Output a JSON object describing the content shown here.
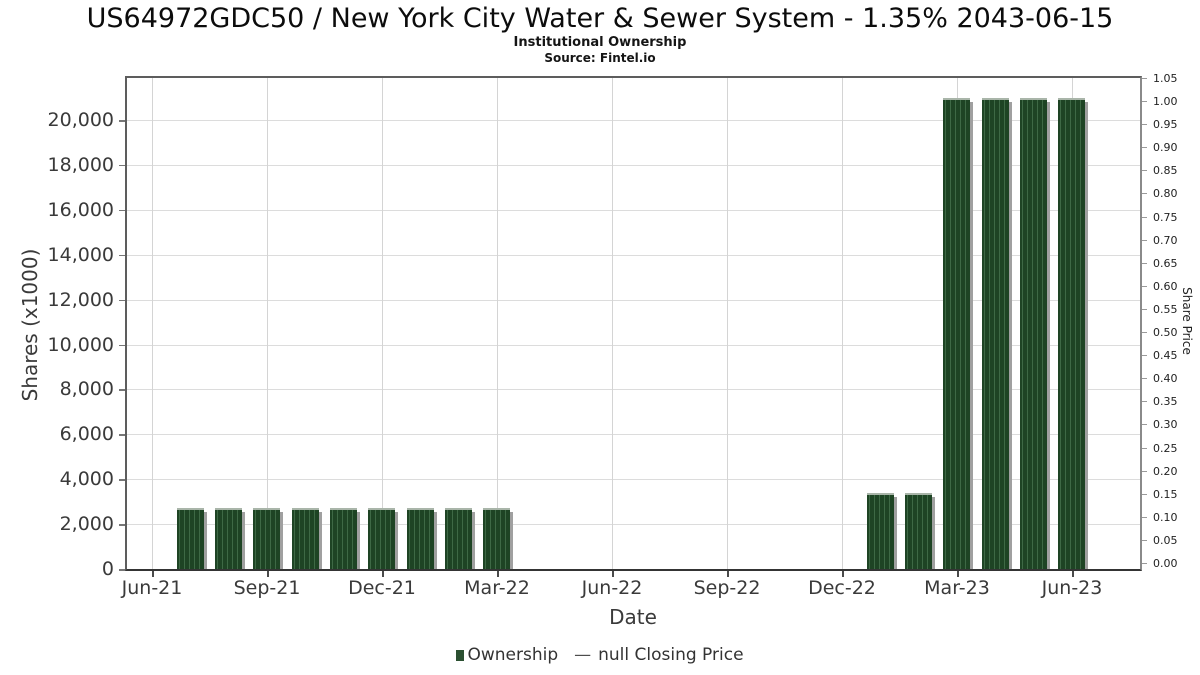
{
  "title": "US64972GDC50 / New York City Water & Sewer System - 1.35% 2043-06-15",
  "subtitle": "Institutional Ownership",
  "source": "Source: Fintel.io",
  "legend": {
    "ownership_label": "Ownership",
    "dash_glyph": "—",
    "price_label": "null Closing Price"
  },
  "colors": {
    "bar_dark": "#1e4424",
    "bar_light": "#3e6945",
    "bar_cap": "#a9b5a9",
    "bar_shadow": "#a0a0a0",
    "legend_marker": "#2b5031",
    "gridline": "#dcdcdc"
  },
  "chart_data": {
    "type": "bar",
    "title": "US64972GDC50 / New York City Water & Sewer System - 1.35% 2043-06-15",
    "subtitle": "Institutional Ownership",
    "source": "Source: Fintel.io",
    "xlabel": "Date",
    "ylabel_left": "Shares (x1000)",
    "ylabel_right": "Share Price",
    "grid": true,
    "legend_position": "bottom-center",
    "x_range_months": [
      "Jun-21",
      "Jun-23"
    ],
    "x_tick_labels": [
      "Jun-21",
      "Sep-21",
      "Dec-21",
      "Mar-22",
      "Jun-22",
      "Sep-22",
      "Dec-22",
      "Mar-23",
      "Jun-23"
    ],
    "ylim_left": [
      0,
      21900
    ],
    "y_left_ticks": [
      {
        "label": "0",
        "value": 0
      },
      {
        "label": "2,000",
        "value": 2000
      },
      {
        "label": "4,000",
        "value": 4000
      },
      {
        "label": "6,000",
        "value": 6000
      },
      {
        "label": "8,000",
        "value": 8000
      },
      {
        "label": "10,000",
        "value": 10000
      },
      {
        "label": "12,000",
        "value": 12000
      },
      {
        "label": "14,000",
        "value": 14000
      },
      {
        "label": "16,000",
        "value": 16000
      },
      {
        "label": "18,000",
        "value": 18000
      },
      {
        "label": "20,000",
        "value": 20000
      }
    ],
    "ylim_right": [
      0.0,
      1.05
    ],
    "y_right_tick_labels": [
      "0.00",
      "0.05",
      "0.10",
      "0.15",
      "0.20",
      "0.25",
      "0.30",
      "0.35",
      "0.40",
      "0.45",
      "0.50",
      "0.55",
      "0.60",
      "0.65",
      "0.70",
      "0.75",
      "0.80",
      "0.85",
      "0.90",
      "0.95",
      "1.00",
      "1.05"
    ],
    "series": [
      {
        "name": "Ownership",
        "unit": "shares (x1000)",
        "points": [
          {
            "date": "Jul-21",
            "month_index": 1,
            "shares_x1000": 2650
          },
          {
            "date": "Aug-21",
            "month_index": 2,
            "shares_x1000": 2650
          },
          {
            "date": "Sep-21",
            "month_index": 3,
            "shares_x1000": 2650
          },
          {
            "date": "Oct-21",
            "month_index": 4,
            "shares_x1000": 2650
          },
          {
            "date": "Nov-21",
            "month_index": 5,
            "shares_x1000": 2650
          },
          {
            "date": "Dec-21",
            "month_index": 6,
            "shares_x1000": 2650
          },
          {
            "date": "Jan-22",
            "month_index": 7,
            "shares_x1000": 2650
          },
          {
            "date": "Feb-22",
            "month_index": 8,
            "shares_x1000": 2650
          },
          {
            "date": "Mar-22",
            "month_index": 9,
            "shares_x1000": 2650
          },
          {
            "date": "Jan-23",
            "month_index": 19,
            "shares_x1000": 3300
          },
          {
            "date": "Feb-23",
            "month_index": 20,
            "shares_x1000": 3300
          },
          {
            "date": "Mar-23",
            "month_index": 21,
            "shares_x1000": 20900
          },
          {
            "date": "Apr-23",
            "month_index": 22,
            "shares_x1000": 20900
          },
          {
            "date": "May-23",
            "month_index": 23,
            "shares_x1000": 20900
          },
          {
            "date": "Jun-23",
            "month_index": 24,
            "shares_x1000": 20900
          }
        ]
      },
      {
        "name": "null Closing Price",
        "unit": "share price",
        "points": []
      }
    ]
  }
}
